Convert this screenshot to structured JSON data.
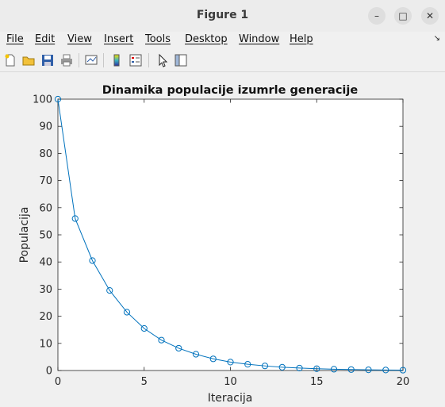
{
  "window": {
    "title": "Figure 1",
    "minimize_label": "–",
    "maximize_label": "□",
    "close_label": "✕"
  },
  "menu": {
    "items": [
      {
        "label": "File"
      },
      {
        "label": "Edit"
      },
      {
        "label": "View"
      },
      {
        "label": "Insert"
      },
      {
        "label": "Tools"
      },
      {
        "label": "Desktop"
      },
      {
        "label": "Window"
      },
      {
        "label": "Help"
      }
    ],
    "overflow_icon": "menu-arrow-icon"
  },
  "toolbar": {
    "icons": [
      "new-figure-icon",
      "open-file-icon",
      "save-icon",
      "print-icon",
      "link-plot-icon",
      "colorbar-icon",
      "legend-icon",
      "pointer-icon",
      "property-inspector-icon"
    ]
  },
  "colors": {
    "line": "#0072bd",
    "axes_bg": "#ffffff",
    "figure_bg": "#f0f0f0"
  },
  "chart_data": {
    "type": "line",
    "title": "Dinamika populacije izumrle generacije",
    "xlabel": "Iteracija",
    "ylabel": "Populacija",
    "xlim": [
      0,
      20
    ],
    "ylim": [
      0,
      100
    ],
    "xticks": [
      0,
      5,
      10,
      15,
      20
    ],
    "yticks": [
      0,
      10,
      20,
      30,
      40,
      50,
      60,
      70,
      80,
      90,
      100
    ],
    "grid": false,
    "marker": "circle",
    "series": [
      {
        "x": [
          0,
          1,
          2,
          3,
          4,
          5,
          6,
          7,
          8,
          9,
          10,
          11,
          12,
          13,
          14,
          15,
          16,
          17,
          18,
          19,
          20
        ],
        "values": [
          100,
          56,
          40.5,
          29.5,
          21.5,
          15.5,
          11.2,
          8.2,
          6,
          4.3,
          3.1,
          2.3,
          1.7,
          1.2,
          0.9,
          0.65,
          0.48,
          0.35,
          0.25,
          0.18,
          0.13
        ]
      }
    ]
  }
}
